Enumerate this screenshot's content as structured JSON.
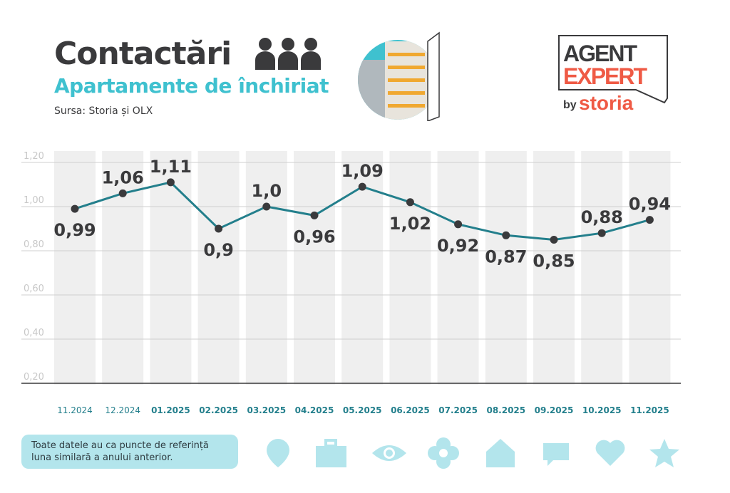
{
  "header": {
    "title": "Contactări",
    "subtitle": "Apartamente de închiriat",
    "source": "Sursa: Storia și OLX"
  },
  "logo": {
    "line1": "AGENT",
    "line2": "EXPERT",
    "by": "by",
    "brand": "storia"
  },
  "note": "Toate datele au ca puncte de referință luna similară a anului anterior.",
  "colors": {
    "line": "#237f8c",
    "dot": "#3a3a3c",
    "column": "#efefef",
    "accent": "#3fc1cf",
    "icons": "#b3e5ec",
    "logo": "#ef5a45"
  },
  "icons": [
    "map-pin-icon",
    "briefcase-icon",
    "eye-icon",
    "flower-icon",
    "house-icon",
    "chat-icon",
    "heart-icon",
    "star-icon"
  ],
  "chart_data": {
    "type": "line",
    "categories": [
      "11.2024",
      "12.2024",
      "01.2025",
      "02.2025",
      "03.2025",
      "04.2025",
      "05.2025",
      "06.2025",
      "07.2025",
      "08.2025",
      "09.2025",
      "10.2025",
      "11.2025"
    ],
    "values": [
      0.99,
      1.06,
      1.11,
      0.9,
      1.0,
      0.96,
      1.09,
      1.02,
      0.92,
      0.87,
      0.85,
      0.88,
      0.94
    ],
    "labels": [
      "0,99",
      "1,06",
      "1,11",
      "0,9",
      "1,0",
      "0,96",
      "1,09",
      "1,02",
      "0,92",
      "0,87",
      "0,85",
      "0,88",
      "0,94"
    ],
    "yticks": [
      "0,20",
      "0,40",
      "0,60",
      "0,80",
      "1,00",
      "1,20"
    ],
    "ytick_values": [
      0.2,
      0.4,
      0.6,
      0.8,
      1.0,
      1.2
    ],
    "ylim": [
      0.2,
      1.24
    ],
    "grid": true,
    "title": "",
    "xlabel": "",
    "ylabel": ""
  }
}
